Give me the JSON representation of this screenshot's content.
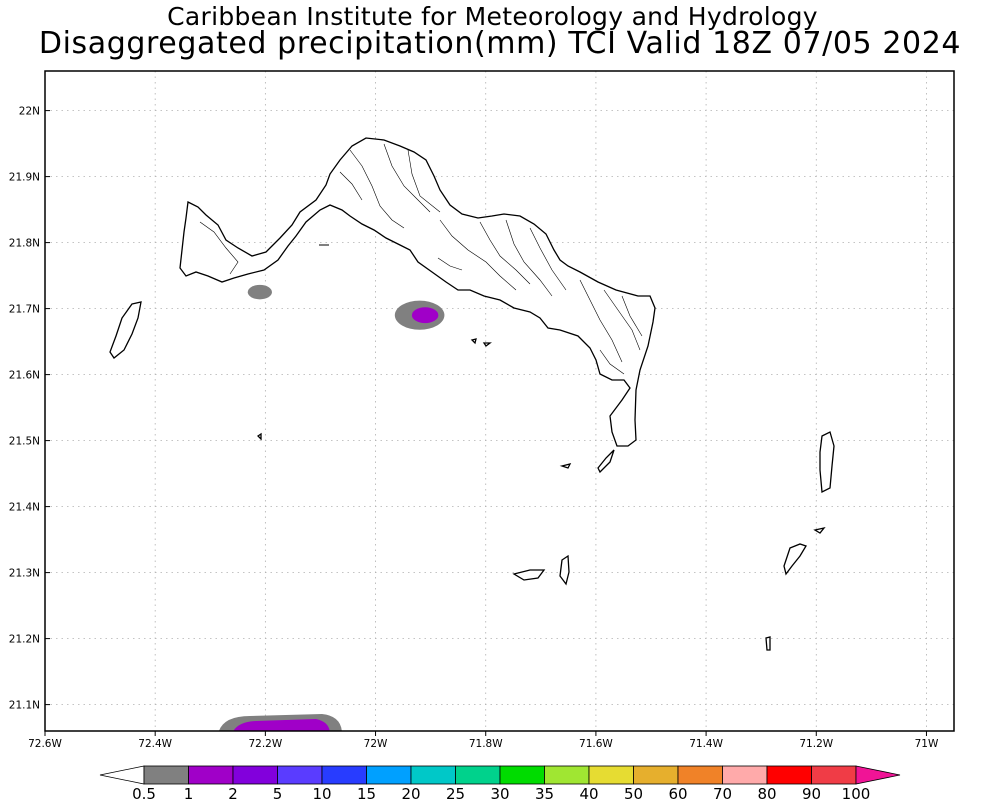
{
  "title": {
    "line1": "Caribbean Institute for Meteorology and Hydrology",
    "line2": "Disaggregated precipitation(mm) TCI Valid 18Z 07/05 2024"
  },
  "map": {
    "lon_range": [
      -72.6,
      -70.95
    ],
    "lat_range": [
      21.06,
      22.06
    ],
    "lon_ticks": [
      {
        "v": -72.6,
        "label": "72.6W"
      },
      {
        "v": -72.4,
        "label": "72.4W"
      },
      {
        "v": -72.2,
        "label": "72.2W"
      },
      {
        "v": -72.0,
        "label": "72W"
      },
      {
        "v": -71.8,
        "label": "71.8W"
      },
      {
        "v": -71.6,
        "label": "71.6W"
      },
      {
        "v": -71.4,
        "label": "71.4W"
      },
      {
        "v": -71.2,
        "label": "71.2W"
      },
      {
        "v": -71.0,
        "label": "71W"
      }
    ],
    "lat_ticks": [
      {
        "v": 22.0,
        "label": "22N"
      },
      {
        "v": 21.9,
        "label": "21.9N"
      },
      {
        "v": 21.8,
        "label": "21.8N"
      },
      {
        "v": 21.7,
        "label": "21.7N"
      },
      {
        "v": 21.6,
        "label": "21.6N"
      },
      {
        "v": 21.5,
        "label": "21.5N"
      },
      {
        "v": 21.4,
        "label": "21.4N"
      },
      {
        "v": 21.3,
        "label": "21.3N"
      },
      {
        "v": 21.2,
        "label": "21.2N"
      },
      {
        "v": 21.1,
        "label": "21.1N"
      }
    ],
    "grid": true,
    "precip_areas": [
      {
        "lon": -71.92,
        "lat": 21.69,
        "rx_deg": 0.045,
        "ry_deg": 0.022,
        "value_mm": 1,
        "color": "#808080"
      },
      {
        "lon": -71.91,
        "lat": 21.69,
        "rx_deg": 0.024,
        "ry_deg": 0.012,
        "value_mm": 2,
        "color": "#a000c8"
      },
      {
        "lon": -72.21,
        "lat": 21.725,
        "rx_deg": 0.022,
        "ry_deg": 0.011,
        "value_mm": 0.5,
        "color": "#808080"
      }
    ]
  },
  "colorbar": {
    "labels": [
      "0.5",
      "1",
      "2",
      "5",
      "10",
      "15",
      "20",
      "25",
      "30",
      "35",
      "40",
      "50",
      "60",
      "70",
      "80",
      "90",
      "100"
    ],
    "colors": [
      "#808080",
      "#a000c8",
      "#8200dc",
      "#5a3cff",
      "#283cff",
      "#00a0ff",
      "#00c8c8",
      "#00d28c",
      "#00dc00",
      "#a0e632",
      "#e6dc32",
      "#e6af2d",
      "#f08228",
      "#ffaaaa",
      "#ff0000",
      "#f03c46"
    ],
    "low_arrow_color": "#ffffff",
    "high_arrow_color": "#f01496"
  }
}
